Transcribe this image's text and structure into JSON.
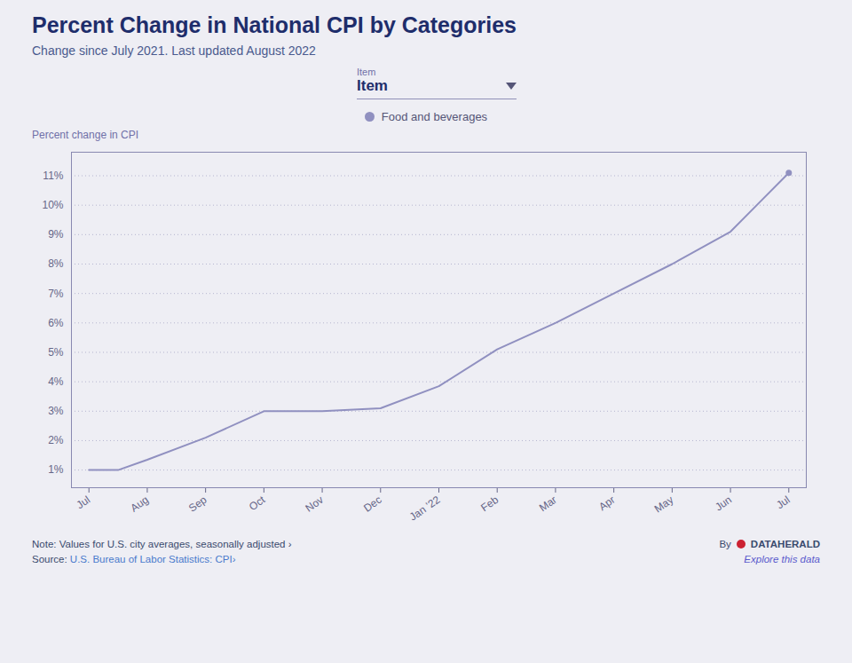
{
  "chart_data": {
    "type": "line",
    "title": "Percent Change in National CPI by Categories",
    "subtitle": "Change since July 2021. Last updated August 2022",
    "ylabel": "Percent change in CPI",
    "x": [
      0,
      0.5,
      1,
      2,
      3,
      4,
      5,
      6,
      7,
      8,
      9,
      10,
      11,
      11.5,
      12
    ],
    "series": [
      {
        "name": "Food and beverages",
        "color": "#9090c0",
        "values": [
          1.0,
          1.0,
          1.35,
          2.1,
          3.0,
          3.0,
          3.1,
          3.85,
          5.1,
          6.0,
          7.0,
          8.0,
          9.1,
          10.1,
          11.1
        ]
      }
    ],
    "xlim": [
      -0.3,
      12.3
    ],
    "xticks": [
      {
        "value": 0,
        "label": "Jul"
      },
      {
        "value": 1,
        "label": "Aug"
      },
      {
        "value": 2,
        "label": "Sep"
      },
      {
        "value": 3,
        "label": "Oct"
      },
      {
        "value": 4,
        "label": "Nov"
      },
      {
        "value": 5,
        "label": "Dec"
      },
      {
        "value": 6,
        "label": "Jan ’22"
      },
      {
        "value": 7,
        "label": "Feb"
      },
      {
        "value": 8,
        "label": "Mar"
      },
      {
        "value": 9,
        "label": "Apr"
      },
      {
        "value": 10,
        "label": "May"
      },
      {
        "value": 11,
        "label": "Jun"
      },
      {
        "value": 12,
        "label": "Jul"
      }
    ],
    "ylim": [
      0.4,
      11.8
    ],
    "yticks": [
      {
        "value": 1,
        "label": "1%"
      },
      {
        "value": 2,
        "label": "2%"
      },
      {
        "value": 3,
        "label": "3%"
      },
      {
        "value": 4,
        "label": "4%"
      },
      {
        "value": 5,
        "label": "5%"
      },
      {
        "value": 6,
        "label": "6%"
      },
      {
        "value": 7,
        "label": "7%"
      },
      {
        "value": 8,
        "label": "8%"
      },
      {
        "value": 9,
        "label": "9%"
      },
      {
        "value": 10,
        "label": "10%"
      },
      {
        "value": 11,
        "label": "11%"
      }
    ],
    "grid": true,
    "legend": "top",
    "marker": "end",
    "annotations": [
      "Item",
      "Item",
      "Note: Values for U.S. city averages, seasonally adjusted ›",
      "Source:",
      "U.S. Bureau of Labor Statistics: CPI›",
      "By",
      "DATAHERALD",
      "Explore this data"
    ]
  }
}
